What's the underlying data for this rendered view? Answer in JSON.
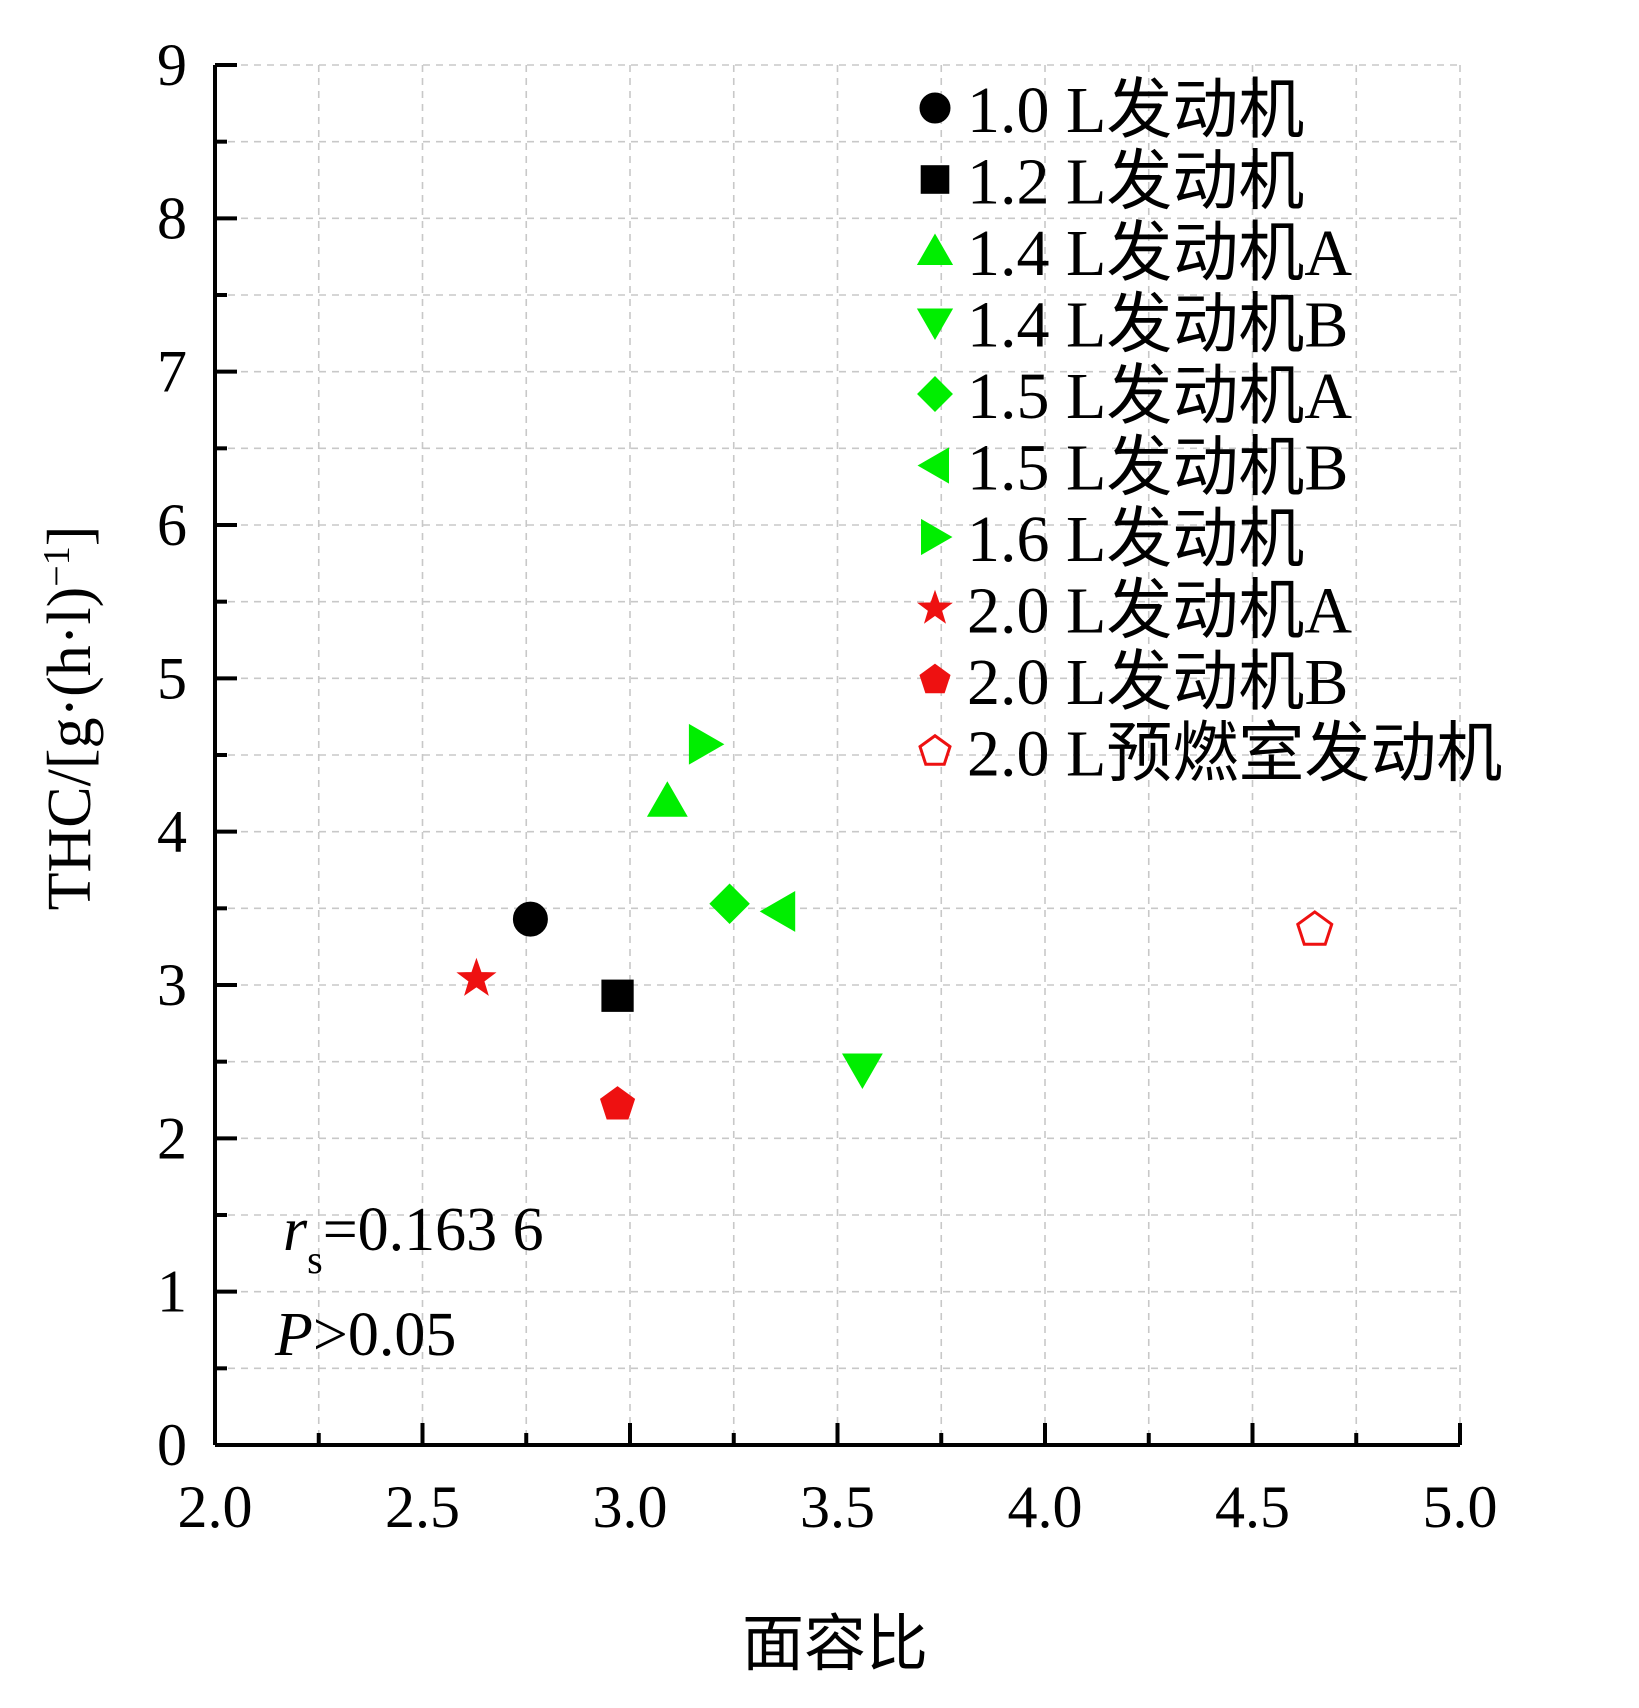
{
  "chart_data": {
    "type": "scatter",
    "xlabel": "面容比",
    "ylabel": "THC/[g·(h·l)⁻¹]",
    "ylabel_parts": {
      "main": "THC/[g·(h·l)",
      "sup": "−1",
      "close": "]"
    },
    "xlim": [
      2.0,
      5.0
    ],
    "ylim": [
      0,
      9
    ],
    "xticks": [
      "2.0",
      "2.5",
      "3.0",
      "3.5",
      "4.0",
      "4.5",
      "5.0"
    ],
    "xtick_values": [
      2.0,
      2.5,
      3.0,
      3.5,
      4.0,
      4.5,
      5.0
    ],
    "yticks": [
      "0",
      "1",
      "2",
      "3",
      "4",
      "5",
      "6",
      "7",
      "8",
      "9"
    ],
    "ytick_values": [
      0,
      1,
      2,
      3,
      4,
      5,
      6,
      7,
      8,
      9
    ],
    "grid": true,
    "legend_position": "top-right",
    "series": [
      {
        "name": "1.0 L发动机",
        "marker": "circle",
        "color": "#000000",
        "filled": true,
        "x": [
          2.76
        ],
        "y": [
          3.43
        ]
      },
      {
        "name": "1.2 L发动机",
        "marker": "square",
        "color": "#000000",
        "filled": true,
        "x": [
          2.97
        ],
        "y": [
          2.93
        ]
      },
      {
        "name": "1.4 L发动机A",
        "marker": "triangle-up",
        "color": "#00ee00",
        "filled": true,
        "x": [
          3.09
        ],
        "y": [
          4.2
        ]
      },
      {
        "name": "1.4 L发动机B",
        "marker": "triangle-down",
        "color": "#00ee00",
        "filled": true,
        "x": [
          3.56
        ],
        "y": [
          2.45
        ]
      },
      {
        "name": "1.5 L发动机A",
        "marker": "diamond",
        "color": "#00ee00",
        "filled": true,
        "x": [
          3.24
        ],
        "y": [
          3.53
        ]
      },
      {
        "name": "1.5 L发动机B",
        "marker": "triangle-left",
        "color": "#00ee00",
        "filled": true,
        "x": [
          3.36
        ],
        "y": [
          3.48
        ]
      },
      {
        "name": "1.6 L发动机",
        "marker": "triangle-right",
        "color": "#00ee00",
        "filled": true,
        "x": [
          3.18
        ],
        "y": [
          4.57
        ]
      },
      {
        "name": "2.0 L发动机A",
        "marker": "star",
        "color": "#ee1111",
        "filled": true,
        "x": [
          2.63
        ],
        "y": [
          3.04
        ]
      },
      {
        "name": "2.0 L发动机B",
        "marker": "pentagon",
        "color": "#ee1111",
        "filled": true,
        "x": [
          2.97
        ],
        "y": [
          2.22
        ]
      },
      {
        "name": "2.0 L预燃室发动机",
        "marker": "pentagon",
        "color": "#ee1111",
        "filled": false,
        "x": [
          4.65
        ],
        "y": [
          3.36
        ]
      }
    ],
    "annotations": {
      "rs_symbol": "r",
      "rs_sub": "s",
      "rs_value": "=0.163 6",
      "p_symbol": "P",
      "p_value": ">0.05"
    }
  }
}
